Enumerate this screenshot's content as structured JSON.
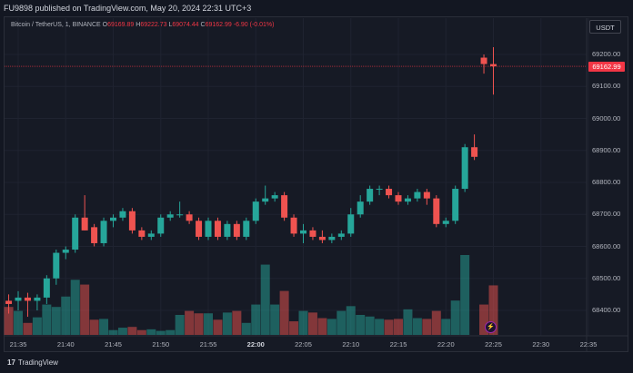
{
  "header": {
    "published_text": "FU9898 published on TradingView.com, May 20, 2024 22:31 UTC+3"
  },
  "legend": {
    "symbol": "Bitcoin / TetherUS, 1, BINANCE",
    "o_label": "O",
    "o_value": "69169.89",
    "h_label": "H",
    "h_value": "69222.73",
    "l_label": "L",
    "l_value": "69074.44",
    "c_label": "C",
    "c_value": "69162.99",
    "change": "-6.90 (-0.01%)"
  },
  "currency_button": "USDT",
  "last_price_tag": "69162.99",
  "y_axis_labels": [
    "69200.00",
    "69100.00",
    "69000.00",
    "68900.00",
    "68800.00",
    "68700.00",
    "68600.00",
    "68500.00",
    "68400.00"
  ],
  "x_axis_labels": [
    "21:35",
    "21:40",
    "21:45",
    "21:50",
    "21:55",
    "22:00",
    "22:05",
    "22:10",
    "22:15",
    "22:20",
    "22:25",
    "22:30",
    "22:35"
  ],
  "footer": {
    "logo_text": "TradingView",
    "logo_mark": "17"
  },
  "icons": {
    "bolt": "lightning-icon"
  },
  "colors": {
    "up": "#26a69a",
    "down": "#ef5350",
    "bg": "#161a25",
    "price_tag": "#f23645"
  },
  "chart_data": {
    "type": "candlestick",
    "title": "Bitcoin / TetherUS, 1, BINANCE",
    "interval_minutes": 1,
    "ylim": [
      68400,
      69250
    ],
    "x_range": [
      "21:33",
      "22:37"
    ],
    "candles": [
      {
        "t": "21:34",
        "o": 68430,
        "h": 68450,
        "l": 68390,
        "c": 68420,
        "v": 0.35
      },
      {
        "t": "21:35",
        "o": 68430,
        "h": 68460,
        "l": 68400,
        "c": 68440,
        "v": 0.3
      },
      {
        "t": "21:36",
        "o": 68440,
        "h": 68455,
        "l": 68380,
        "c": 68430,
        "v": 0.15
      },
      {
        "t": "21:37",
        "o": 68430,
        "h": 68450,
        "l": 68400,
        "c": 68440,
        "v": 0.22
      },
      {
        "t": "21:38",
        "o": 68440,
        "h": 68510,
        "l": 68420,
        "c": 68500,
        "v": 0.38
      },
      {
        "t": "21:39",
        "o": 68500,
        "h": 68590,
        "l": 68480,
        "c": 68580,
        "v": 0.35
      },
      {
        "t": "21:40",
        "o": 68580,
        "h": 68600,
        "l": 68560,
        "c": 68590,
        "v": 0.48
      },
      {
        "t": "21:41",
        "o": 68590,
        "h": 68700,
        "l": 68580,
        "c": 68690,
        "v": 0.69
      },
      {
        "t": "21:42",
        "o": 68690,
        "h": 68760,
        "l": 68650,
        "c": 68650,
        "v": 0.63
      },
      {
        "t": "21:43",
        "o": 68660,
        "h": 68670,
        "l": 68600,
        "c": 68610,
        "v": 0.19
      },
      {
        "t": "21:44",
        "o": 68610,
        "h": 68690,
        "l": 68600,
        "c": 68680,
        "v": 0.2
      },
      {
        "t": "21:45",
        "o": 68680,
        "h": 68700,
        "l": 68660,
        "c": 68690,
        "v": 0.06
      },
      {
        "t": "21:46",
        "o": 68690,
        "h": 68720,
        "l": 68680,
        "c": 68710,
        "v": 0.09
      },
      {
        "t": "21:47",
        "o": 68710,
        "h": 68720,
        "l": 68640,
        "c": 68650,
        "v": 0.1
      },
      {
        "t": "21:48",
        "o": 68650,
        "h": 68660,
        "l": 68620,
        "c": 68630,
        "v": 0.06
      },
      {
        "t": "21:49",
        "o": 68630,
        "h": 68650,
        "l": 68620,
        "c": 68640,
        "v": 0.07
      },
      {
        "t": "21:50",
        "o": 68640,
        "h": 68700,
        "l": 68630,
        "c": 68690,
        "v": 0.05
      },
      {
        "t": "21:51",
        "o": 68690,
        "h": 68710,
        "l": 68680,
        "c": 68700,
        "v": 0.06
      },
      {
        "t": "21:52",
        "o": 68700,
        "h": 68740,
        "l": 68690,
        "c": 68700,
        "v": 0.25
      },
      {
        "t": "21:53",
        "o": 68700,
        "h": 68710,
        "l": 68670,
        "c": 68680,
        "v": 0.3
      },
      {
        "t": "21:54",
        "o": 68680,
        "h": 68690,
        "l": 68620,
        "c": 68630,
        "v": 0.27
      },
      {
        "t": "21:55",
        "o": 68630,
        "h": 68690,
        "l": 68620,
        "c": 68680,
        "v": 0.27
      },
      {
        "t": "21:56",
        "o": 68680,
        "h": 68690,
        "l": 68620,
        "c": 68630,
        "v": 0.19
      },
      {
        "t": "21:57",
        "o": 68630,
        "h": 68680,
        "l": 68620,
        "c": 68670,
        "v": 0.28
      },
      {
        "t": "21:58",
        "o": 68670,
        "h": 68680,
        "l": 68620,
        "c": 68630,
        "v": 0.3
      },
      {
        "t": "21:59",
        "o": 68630,
        "h": 68690,
        "l": 68620,
        "c": 68680,
        "v": 0.15
      },
      {
        "t": "22:00",
        "o": 68680,
        "h": 68750,
        "l": 68670,
        "c": 68740,
        "v": 0.38
      },
      {
        "t": "22:01",
        "o": 68740,
        "h": 68790,
        "l": 68730,
        "c": 68750,
        "v": 0.88
      },
      {
        "t": "22:02",
        "o": 68750,
        "h": 68770,
        "l": 68740,
        "c": 68760,
        "v": 0.38
      },
      {
        "t": "22:03",
        "o": 68760,
        "h": 68770,
        "l": 68680,
        "c": 68690,
        "v": 0.55
      },
      {
        "t": "22:04",
        "o": 68690,
        "h": 68700,
        "l": 68630,
        "c": 68640,
        "v": 0.17
      },
      {
        "t": "22:05",
        "o": 68640,
        "h": 68670,
        "l": 68610,
        "c": 68650,
        "v": 0.3
      },
      {
        "t": "22:06",
        "o": 68650,
        "h": 68660,
        "l": 68620,
        "c": 68630,
        "v": 0.28
      },
      {
        "t": "22:07",
        "o": 68630,
        "h": 68650,
        "l": 68610,
        "c": 68620,
        "v": 0.21
      },
      {
        "t": "22:08",
        "o": 68620,
        "h": 68640,
        "l": 68610,
        "c": 68630,
        "v": 0.2
      },
      {
        "t": "22:09",
        "o": 68630,
        "h": 68650,
        "l": 68620,
        "c": 68640,
        "v": 0.3
      },
      {
        "t": "22:10",
        "o": 68640,
        "h": 68720,
        "l": 68630,
        "c": 68700,
        "v": 0.36
      },
      {
        "t": "22:11",
        "o": 68700,
        "h": 68760,
        "l": 68690,
        "c": 68740,
        "v": 0.25
      },
      {
        "t": "22:12",
        "o": 68740,
        "h": 68790,
        "l": 68730,
        "c": 68780,
        "v": 0.23
      },
      {
        "t": "22:13",
        "o": 68780,
        "h": 68790,
        "l": 68760,
        "c": 68780,
        "v": 0.2
      },
      {
        "t": "22:14",
        "o": 68780,
        "h": 68790,
        "l": 68750,
        "c": 68760,
        "v": 0.19
      },
      {
        "t": "22:15",
        "o": 68760,
        "h": 68770,
        "l": 68730,
        "c": 68740,
        "v": 0.2
      },
      {
        "t": "22:16",
        "o": 68740,
        "h": 68760,
        "l": 68730,
        "c": 68750,
        "v": 0.32
      },
      {
        "t": "22:17",
        "o": 68750,
        "h": 68780,
        "l": 68740,
        "c": 68770,
        "v": 0.21
      },
      {
        "t": "22:18",
        "o": 68770,
        "h": 68780,
        "l": 68730,
        "c": 68750,
        "v": 0.2
      },
      {
        "t": "22:19",
        "o": 68750,
        "h": 68760,
        "l": 68660,
        "c": 68670,
        "v": 0.3
      },
      {
        "t": "22:20",
        "o": 68670,
        "h": 68690,
        "l": 68660,
        "c": 68680,
        "v": 0.2
      },
      {
        "t": "22:21",
        "o": 68680,
        "h": 68790,
        "l": 68670,
        "c": 68780,
        "v": 0.43
      },
      {
        "t": "22:22",
        "o": 68780,
        "h": 68920,
        "l": 68770,
        "c": 68910,
        "v": 1.0
      },
      {
        "t": "22:23",
        "o": 68910,
        "h": 68950,
        "l": 68870,
        "c": 68880,
        "v": 0.0
      },
      {
        "t": "22:24",
        "o": 69190,
        "h": 69200,
        "l": 69140,
        "c": 69170,
        "v": 0.38
      },
      {
        "t": "22:25",
        "o": 69169.89,
        "h": 69222.73,
        "l": 69074.44,
        "c": 69162.99,
        "v": 0.62
      }
    ],
    "last_price": 69162.99
  }
}
